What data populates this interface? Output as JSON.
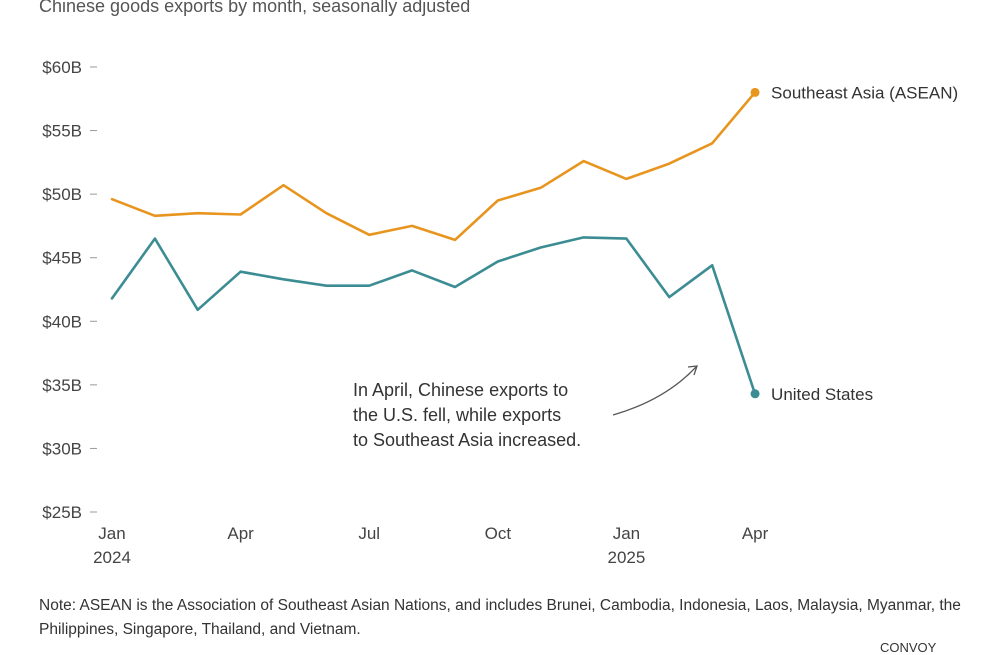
{
  "subtitle": "Chinese goods exports by month, seasonally adjusted",
  "note": "Note: ASEAN is the Association of Southeast Asian Nations, and includes Brunei, Cambodia, Indonesia, Laos, Malaysia, Myanmar, the Philippines, Singapore, Thailand, and Vietnam.",
  "source": "CONVOY",
  "annotation": {
    "lines": [
      "In April, Chinese exports to",
      "the U.S. fell, while exports",
      "to Southeast Asia increased."
    ]
  },
  "colors": {
    "asean": "#E8951F",
    "us": "#3C8D93",
    "axis": "#999999",
    "text": "#333333"
  },
  "chart_data": {
    "type": "line",
    "title": "Chinese goods exports by month, seasonally adjusted",
    "xlabel": "",
    "ylabel": "",
    "ylim": [
      25,
      60
    ],
    "grid": false,
    "y_ticks": [
      {
        "value": 60,
        "label": "$60B"
      },
      {
        "value": 55,
        "label": "$55B"
      },
      {
        "value": 50,
        "label": "$50B"
      },
      {
        "value": 45,
        "label": "$45B"
      },
      {
        "value": 40,
        "label": "$40B"
      },
      {
        "value": 35,
        "label": "$35B"
      },
      {
        "value": 30,
        "label": "$30B"
      },
      {
        "value": 25,
        "label": "$25B"
      }
    ],
    "x": [
      "2024-01",
      "2024-02",
      "2024-03",
      "2024-04",
      "2024-05",
      "2024-06",
      "2024-07",
      "2024-08",
      "2024-09",
      "2024-10",
      "2024-11",
      "2024-12",
      "2025-01",
      "2025-02",
      "2025-03",
      "2025-04"
    ],
    "x_ticks": [
      {
        "index": 0,
        "label": "Jan",
        "sublabel": "2024"
      },
      {
        "index": 3,
        "label": "Apr",
        "sublabel": ""
      },
      {
        "index": 6,
        "label": "Jul",
        "sublabel": ""
      },
      {
        "index": 9,
        "label": "Oct",
        "sublabel": ""
      },
      {
        "index": 12,
        "label": "Jan",
        "sublabel": "2025"
      },
      {
        "index": 15,
        "label": "Apr",
        "sublabel": ""
      }
    ],
    "series": [
      {
        "name": "Southeast Asia (ASEAN)",
        "color": "#E8951F",
        "values": [
          49.6,
          48.3,
          48.5,
          48.4,
          50.7,
          48.5,
          46.8,
          47.5,
          46.4,
          49.5,
          50.5,
          52.6,
          51.2,
          52.4,
          54.0,
          58.0
        ]
      },
      {
        "name": "United States",
        "color": "#3C8D93",
        "values": [
          41.8,
          46.5,
          40.9,
          43.9,
          43.3,
          42.8,
          42.8,
          44.0,
          42.7,
          44.7,
          45.8,
          46.6,
          46.5,
          41.9,
          44.4,
          34.3
        ]
      }
    ]
  }
}
